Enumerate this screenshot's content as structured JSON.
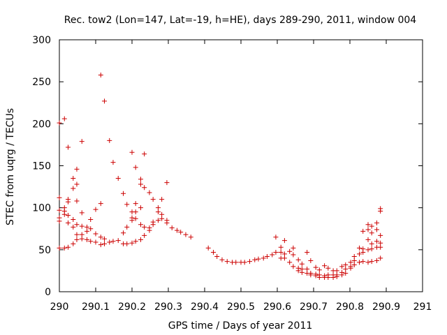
{
  "chart_data": {
    "type": "scatter",
    "title": "Rec. tow2 (Lon=147, Lat=-19, h=HE), days 289-290, 2011, window 004",
    "xlabel": "GPS time / Days of year 2011",
    "ylabel": "STEC from uqrg / TECUs",
    "xlim": [
      290,
      291
    ],
    "ylim": [
      0,
      300
    ],
    "xticks": [
      290,
      290.1,
      290.2,
      290.3,
      290.4,
      290.5,
      290.6,
      290.7,
      290.8,
      290.9,
      291
    ],
    "xtick_labels": [
      "290",
      "290.1",
      "290.2",
      "290.3",
      "290.4",
      "290.5",
      "290.6",
      "290.7",
      "290.8",
      "290.9",
      "291"
    ],
    "yticks": [
      0,
      50,
      100,
      150,
      200,
      250,
      300
    ],
    "ytick_labels": [
      "0",
      "50",
      "100",
      "150",
      "200",
      "250",
      "300"
    ],
    "grid": false,
    "marker": "+",
    "color": "#cc0000",
    "points": [
      [
        290.0,
        201
      ],
      [
        290.0,
        112
      ],
      [
        290.0,
        97
      ],
      [
        290.0,
        88
      ],
      [
        290.0,
        84
      ],
      [
        290.0,
        52
      ],
      [
        290.014,
        206
      ],
      [
        290.014,
        100
      ],
      [
        290.014,
        96
      ],
      [
        290.014,
        92
      ],
      [
        290.014,
        52
      ],
      [
        290.024,
        172
      ],
      [
        290.024,
        110
      ],
      [
        290.024,
        107
      ],
      [
        290.024,
        91
      ],
      [
        290.024,
        82
      ],
      [
        290.024,
        53
      ],
      [
        290.038,
        135
      ],
      [
        290.038,
        123
      ],
      [
        290.038,
        86
      ],
      [
        290.038,
        77
      ],
      [
        290.038,
        57
      ],
      [
        290.048,
        146
      ],
      [
        290.048,
        128
      ],
      [
        290.048,
        108
      ],
      [
        290.048,
        80
      ],
      [
        290.048,
        68
      ],
      [
        290.048,
        62
      ],
      [
        290.062,
        179
      ],
      [
        290.062,
        94
      ],
      [
        290.062,
        78
      ],
      [
        290.062,
        68
      ],
      [
        290.062,
        63
      ],
      [
        290.076,
        77
      ],
      [
        290.076,
        72
      ],
      [
        290.076,
        62
      ],
      [
        290.086,
        86
      ],
      [
        290.086,
        75
      ],
      [
        290.086,
        60
      ],
      [
        290.1,
        98
      ],
      [
        290.1,
        69
      ],
      [
        290.1,
        59
      ],
      [
        290.114,
        258
      ],
      [
        290.114,
        105
      ],
      [
        290.114,
        65
      ],
      [
        290.114,
        56
      ],
      [
        290.124,
        227
      ],
      [
        290.124,
        63
      ],
      [
        290.124,
        57
      ],
      [
        290.138,
        180
      ],
      [
        290.138,
        59
      ],
      [
        290.148,
        154
      ],
      [
        290.148,
        60
      ],
      [
        290.162,
        135
      ],
      [
        290.162,
        61
      ],
      [
        290.176,
        117
      ],
      [
        290.176,
        70
      ],
      [
        290.176,
        57
      ],
      [
        290.186,
        104
      ],
      [
        290.186,
        77
      ],
      [
        290.186,
        57
      ],
      [
        290.2,
        166
      ],
      [
        290.2,
        95
      ],
      [
        290.2,
        88
      ],
      [
        290.2,
        85
      ],
      [
        290.2,
        58
      ],
      [
        290.21,
        148
      ],
      [
        290.21,
        105
      ],
      [
        290.21,
        95
      ],
      [
        290.21,
        87
      ],
      [
        290.21,
        60
      ],
      [
        290.224,
        134
      ],
      [
        290.224,
        128
      ],
      [
        290.224,
        100
      ],
      [
        290.224,
        80
      ],
      [
        290.224,
        62
      ],
      [
        290.234,
        164
      ],
      [
        290.234,
        124
      ],
      [
        290.234,
        77
      ],
      [
        290.234,
        67
      ],
      [
        290.248,
        118
      ],
      [
        290.248,
        76
      ],
      [
        290.248,
        73
      ],
      [
        290.258,
        110
      ],
      [
        290.258,
        83
      ],
      [
        290.258,
        80
      ],
      [
        290.272,
        100
      ],
      [
        290.272,
        95
      ],
      [
        290.272,
        85
      ],
      [
        290.282,
        110
      ],
      [
        290.282,
        92
      ],
      [
        290.282,
        87
      ],
      [
        290.296,
        130
      ],
      [
        290.296,
        85
      ],
      [
        290.296,
        82
      ],
      [
        290.31,
        76
      ],
      [
        290.324,
        73
      ],
      [
        290.334,
        71
      ],
      [
        290.348,
        68
      ],
      [
        290.362,
        65
      ],
      [
        290.41,
        52
      ],
      [
        290.424,
        47
      ],
      [
        290.434,
        42
      ],
      [
        290.448,
        38
      ],
      [
        290.462,
        36
      ],
      [
        290.476,
        35
      ],
      [
        290.486,
        35
      ],
      [
        290.5,
        35
      ],
      [
        290.51,
        35
      ],
      [
        290.524,
        36
      ],
      [
        290.538,
        38
      ],
      [
        290.548,
        39
      ],
      [
        290.562,
        40
      ],
      [
        290.572,
        42
      ],
      [
        290.586,
        44
      ],
      [
        290.596,
        65
      ],
      [
        290.596,
        47
      ],
      [
        290.61,
        53
      ],
      [
        290.61,
        47
      ],
      [
        290.61,
        40
      ],
      [
        290.62,
        61
      ],
      [
        290.62,
        45
      ],
      [
        290.62,
        40
      ],
      [
        290.634,
        48
      ],
      [
        290.634,
        35
      ],
      [
        290.644,
        52
      ],
      [
        290.644,
        44
      ],
      [
        290.644,
        30
      ],
      [
        290.658,
        38
      ],
      [
        290.658,
        28
      ],
      [
        290.658,
        25
      ],
      [
        290.668,
        33
      ],
      [
        290.668,
        27
      ],
      [
        290.668,
        23
      ],
      [
        290.682,
        47
      ],
      [
        290.682,
        27
      ],
      [
        290.682,
        22
      ],
      [
        290.692,
        37
      ],
      [
        290.692,
        22
      ],
      [
        290.692,
        20
      ],
      [
        290.706,
        29
      ],
      [
        290.706,
        21
      ],
      [
        290.706,
        19
      ],
      [
        290.716,
        26
      ],
      [
        290.716,
        20
      ],
      [
        290.716,
        17
      ],
      [
        290.73,
        31
      ],
      [
        290.73,
        19
      ],
      [
        290.73,
        17
      ],
      [
        290.74,
        28
      ],
      [
        290.74,
        20
      ],
      [
        290.74,
        17
      ],
      [
        290.754,
        25
      ],
      [
        290.754,
        20
      ],
      [
        290.754,
        17
      ],
      [
        290.764,
        25
      ],
      [
        290.764,
        20
      ],
      [
        290.764,
        18
      ],
      [
        290.778,
        30
      ],
      [
        290.778,
        23
      ],
      [
        290.778,
        20
      ],
      [
        290.788,
        32
      ],
      [
        290.788,
        27
      ],
      [
        290.788,
        22
      ],
      [
        290.802,
        35
      ],
      [
        290.802,
        30
      ],
      [
        290.802,
        28
      ],
      [
        290.812,
        42
      ],
      [
        290.812,
        37
      ],
      [
        290.812,
        32
      ],
      [
        290.826,
        52
      ],
      [
        290.826,
        45
      ],
      [
        290.826,
        35
      ],
      [
        290.836,
        72
      ],
      [
        290.836,
        51
      ],
      [
        290.836,
        47
      ],
      [
        290.836,
        36
      ],
      [
        290.85,
        80
      ],
      [
        290.85,
        74
      ],
      [
        290.85,
        62
      ],
      [
        290.85,
        50
      ],
      [
        290.85,
        35
      ],
      [
        290.86,
        78
      ],
      [
        290.86,
        70
      ],
      [
        290.86,
        57
      ],
      [
        290.86,
        51
      ],
      [
        290.86,
        36
      ],
      [
        290.874,
        82
      ],
      [
        290.874,
        74
      ],
      [
        290.874,
        60
      ],
      [
        290.874,
        53
      ],
      [
        290.874,
        37
      ],
      [
        290.884,
        99
      ],
      [
        290.884,
        96
      ],
      [
        290.884,
        67
      ],
      [
        290.884,
        58
      ],
      [
        290.884,
        53
      ],
      [
        290.884,
        40
      ]
    ]
  }
}
